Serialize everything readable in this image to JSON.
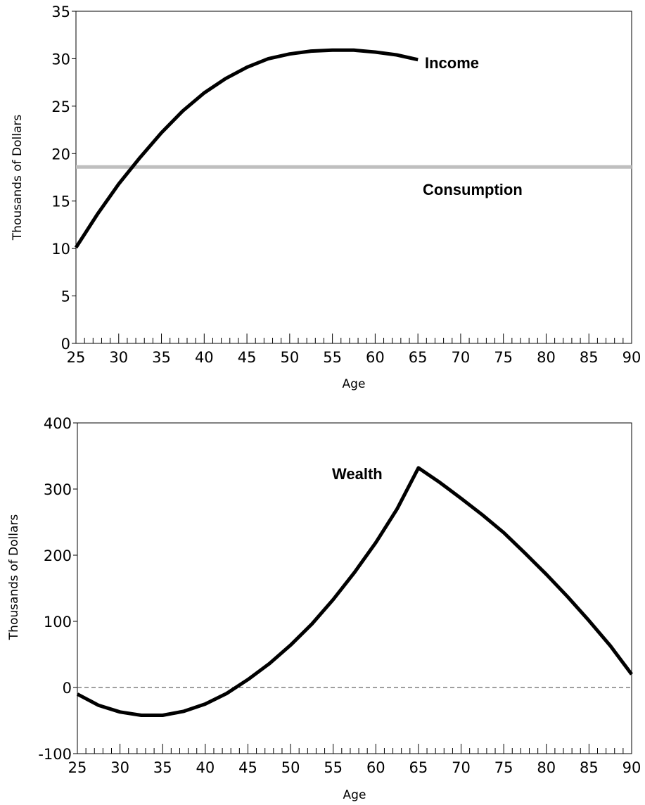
{
  "chart_data": [
    {
      "type": "line",
      "xlabel": "Age",
      "ylabel": "Thousands of Dollars",
      "xlim": [
        25,
        90
      ],
      "ylim": [
        0,
        35
      ],
      "x_ticks": [
        25,
        30,
        35,
        40,
        45,
        50,
        55,
        60,
        65,
        70,
        75,
        80,
        85,
        90
      ],
      "y_ticks": [
        0,
        5,
        10,
        15,
        20,
        25,
        30,
        35
      ],
      "grid": false,
      "series": [
        {
          "name": "Income",
          "color": "#000000",
          "x": [
            25,
            27.5,
            30,
            32.5,
            35,
            37.5,
            40,
            42.5,
            45,
            47.5,
            50,
            52.5,
            55,
            57.5,
            60,
            62.5,
            65
          ],
          "values": [
            10.1,
            13.6,
            16.8,
            19.6,
            22.2,
            24.5,
            26.4,
            27.9,
            29.1,
            30.0,
            30.5,
            30.8,
            30.9,
            30.9,
            30.7,
            30.4,
            29.9
          ]
        },
        {
          "name": "Consumption",
          "color": "#bfbfbf",
          "x": [
            25,
            90
          ],
          "values": [
            18.6,
            18.6
          ]
        }
      ]
    },
    {
      "type": "line",
      "xlabel": "Age",
      "ylabel": "Thousands of Dollars",
      "xlim": [
        25,
        90
      ],
      "ylim": [
        -100,
        400
      ],
      "x_ticks": [
        25,
        30,
        35,
        40,
        45,
        50,
        55,
        60,
        65,
        70,
        75,
        80,
        85,
        90
      ],
      "y_ticks": [
        -100,
        0,
        100,
        200,
        300,
        400
      ],
      "grid": false,
      "reference_line": {
        "y": 0,
        "style": "dashed"
      },
      "series": [
        {
          "name": "Wealth",
          "color": "#000000",
          "x": [
            25,
            27.5,
            30,
            32.5,
            35,
            37.5,
            40,
            42.5,
            45,
            47.5,
            50,
            52.5,
            55,
            57.5,
            60,
            62.5,
            65,
            67.5,
            70,
            72.5,
            75,
            77.5,
            80,
            82.5,
            85,
            87.5,
            90
          ],
          "values": [
            -10,
            -27,
            -37,
            -42,
            -42,
            -36,
            -25,
            -9,
            12,
            36,
            64,
            96,
            133,
            174,
            219,
            270,
            332,
            310,
            286,
            261,
            234,
            203,
            171,
            137,
            101,
            63,
            20
          ]
        }
      ]
    }
  ]
}
